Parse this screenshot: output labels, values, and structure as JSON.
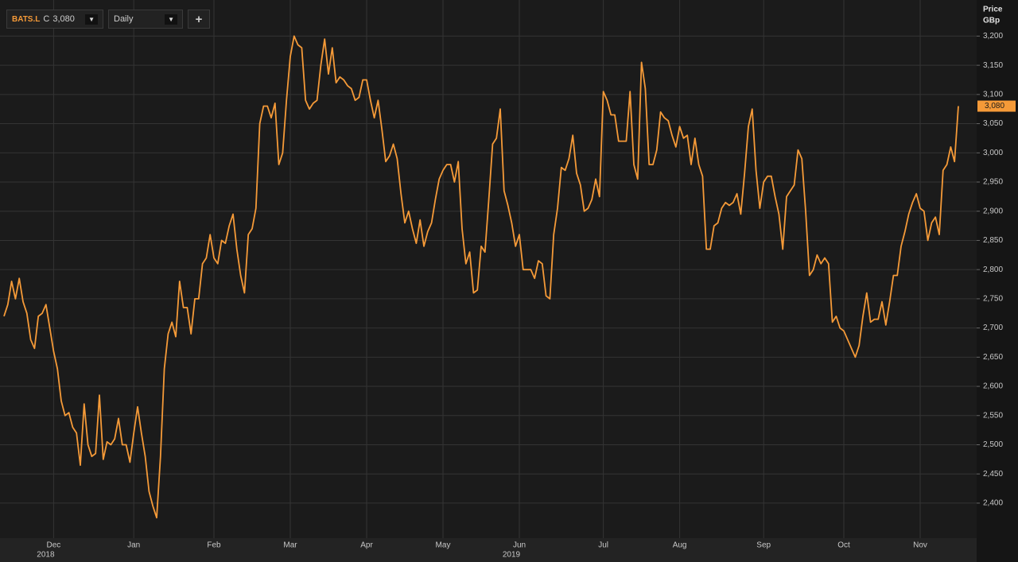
{
  "toolbar": {
    "symbol": "BATS.L",
    "close_prefix": "C",
    "close_value": "3,080",
    "interval": "Daily",
    "add": "+"
  },
  "chart_data": {
    "type": "line",
    "axis_title": "Price",
    "axis_unit": "GBp",
    "current_value_label": "3,080",
    "categories": [
      null,
      null,
      null,
      null,
      null,
      null,
      null,
      null,
      null,
      null,
      null,
      null,
      null,
      "Dec",
      null,
      null,
      null,
      null,
      null,
      null,
      null,
      null,
      null,
      null,
      null,
      null,
      null,
      null,
      null,
      null,
      null,
      null,
      null,
      null,
      "Jan",
      null,
      null,
      null,
      null,
      null,
      null,
      null,
      null,
      null,
      null,
      null,
      null,
      null,
      null,
      null,
      null,
      null,
      null,
      null,
      null,
      "Feb",
      null,
      null,
      null,
      null,
      null,
      null,
      null,
      null,
      null,
      null,
      null,
      null,
      null,
      null,
      null,
      null,
      null,
      null,
      null,
      "Mar",
      null,
      null,
      null,
      null,
      null,
      null,
      null,
      null,
      null,
      null,
      null,
      null,
      null,
      null,
      null,
      null,
      null,
      null,
      null,
      "Apr",
      null,
      null,
      null,
      null,
      null,
      null,
      null,
      null,
      null,
      null,
      null,
      null,
      null,
      null,
      null,
      null,
      null,
      null,
      null,
      "May",
      null,
      null,
      null,
      null,
      null,
      null,
      null,
      null,
      null,
      null,
      null,
      null,
      null,
      null,
      null,
      null,
      null,
      null,
      null,
      "Jun",
      null,
      null,
      null,
      null,
      null,
      null,
      null,
      null,
      null,
      null,
      null,
      null,
      null,
      null,
      null,
      null,
      null,
      null,
      null,
      null,
      null,
      "Jul",
      null,
      null,
      null,
      null,
      null,
      null,
      null,
      null,
      null,
      null,
      null,
      null,
      null,
      null,
      null,
      null,
      null,
      null,
      null,
      "Aug",
      null,
      null,
      null,
      null,
      null,
      null,
      null,
      null,
      null,
      null,
      null,
      null,
      null,
      null,
      null,
      null,
      null,
      null,
      null,
      null,
      null,
      "Sep",
      null,
      null,
      null,
      null,
      null,
      null,
      null,
      null,
      null,
      null,
      null,
      null,
      null,
      null,
      null,
      null,
      null,
      null,
      null,
      null,
      "Oct",
      null,
      null,
      null,
      null,
      null,
      null,
      null,
      null,
      null,
      null,
      null,
      null,
      null,
      null,
      null,
      null,
      null,
      null,
      null,
      "Nov",
      null,
      null,
      null,
      null,
      null,
      null,
      null,
      null,
      null,
      null
    ],
    "years": [
      {
        "month": "Dec",
        "label": "2018"
      },
      {
        "month": "Jun",
        "label": "2019"
      }
    ],
    "series": [
      {
        "name": "BATS.L",
        "color": "#f59a38",
        "values": [
          2720,
          2740,
          2780,
          2750,
          2785,
          2745,
          2725,
          2680,
          2665,
          2720,
          2725,
          2740,
          2700,
          2660,
          2630,
          2575,
          2550,
          2555,
          2530,
          2520,
          2465,
          2570,
          2500,
          2480,
          2485,
          2585,
          2475,
          2505,
          2500,
          2510,
          2545,
          2500,
          2500,
          2470,
          2520,
          2565,
          2520,
          2480,
          2420,
          2395,
          2375,
          2480,
          2630,
          2690,
          2710,
          2685,
          2780,
          2735,
          2735,
          2690,
          2750,
          2750,
          2810,
          2820,
          2860,
          2820,
          2810,
          2850,
          2845,
          2875,
          2895,
          2835,
          2790,
          2760,
          2860,
          2870,
          2905,
          3050,
          3080,
          3080,
          3060,
          3085,
          2980,
          3000,
          3090,
          3165,
          3200,
          3185,
          3180,
          3090,
          3075,
          3085,
          3090,
          3150,
          3195,
          3135,
          3180,
          3120,
          3130,
          3125,
          3115,
          3110,
          3090,
          3095,
          3125,
          3125,
          3090,
          3060,
          3090,
          3040,
          2985,
          2995,
          3015,
          2990,
          2930,
          2880,
          2900,
          2870,
          2845,
          2885,
          2840,
          2865,
          2880,
          2920,
          2955,
          2970,
          2980,
          2980,
          2950,
          2985,
          2870,
          2810,
          2830,
          2760,
          2765,
          2840,
          2830,
          2920,
          3015,
          3025,
          3075,
          2935,
          2910,
          2880,
          2840,
          2860,
          2800,
          2800,
          2800,
          2785,
          2815,
          2810,
          2755,
          2750,
          2860,
          2905,
          2975,
          2970,
          2990,
          3030,
          2965,
          2945,
          2900,
          2905,
          2920,
          2955,
          2925,
          3105,
          3090,
          3065,
          3065,
          3020,
          3020,
          3020,
          3105,
          2980,
          2955,
          3155,
          3110,
          2980,
          2980,
          3005,
          3070,
          3060,
          3055,
          3030,
          3010,
          3045,
          3025,
          3030,
          2980,
          3025,
          2980,
          2960,
          2835,
          2835,
          2875,
          2880,
          2905,
          2915,
          2910,
          2915,
          2930,
          2895,
          2965,
          3045,
          3075,
          2970,
          2905,
          2950,
          2960,
          2960,
          2925,
          2895,
          2835,
          2925,
          2935,
          2945,
          3005,
          2990,
          2900,
          2790,
          2800,
          2825,
          2810,
          2820,
          2810,
          2710,
          2720,
          2700,
          2695,
          2680,
          2665,
          2650,
          2670,
          2720,
          2760,
          2710,
          2715,
          2715,
          2745,
          2705,
          2745,
          2790,
          2790,
          2840,
          2865,
          2895,
          2915,
          2930,
          2905,
          2900,
          2850,
          2880,
          2890,
          2860,
          2970,
          2980,
          3010,
          2985,
          3080
        ]
      }
    ],
    "ylim": [
      2340,
      3255
    ],
    "yticks": [
      {
        "value": 2400,
        "label": "2,400"
      },
      {
        "value": 2450,
        "label": "2,450"
      },
      {
        "value": 2500,
        "label": "2,500"
      },
      {
        "value": 2550,
        "label": "2,550"
      },
      {
        "value": 2600,
        "label": "2,600"
      },
      {
        "value": 2650,
        "label": "2,650"
      },
      {
        "value": 2700,
        "label": "2,700"
      },
      {
        "value": 2750,
        "label": "2,750"
      },
      {
        "value": 2800,
        "label": "2,800"
      },
      {
        "value": 2850,
        "label": "2,850"
      },
      {
        "value": 2900,
        "label": "2,900"
      },
      {
        "value": 2950,
        "label": "2,950"
      },
      {
        "value": 3000,
        "label": "3,000"
      },
      {
        "value": 3050,
        "label": "3,050"
      },
      {
        "value": 3100,
        "label": "3,100"
      },
      {
        "value": 3150,
        "label": "3,150"
      },
      {
        "value": 3200,
        "label": "3,200"
      }
    ],
    "grid": true
  }
}
